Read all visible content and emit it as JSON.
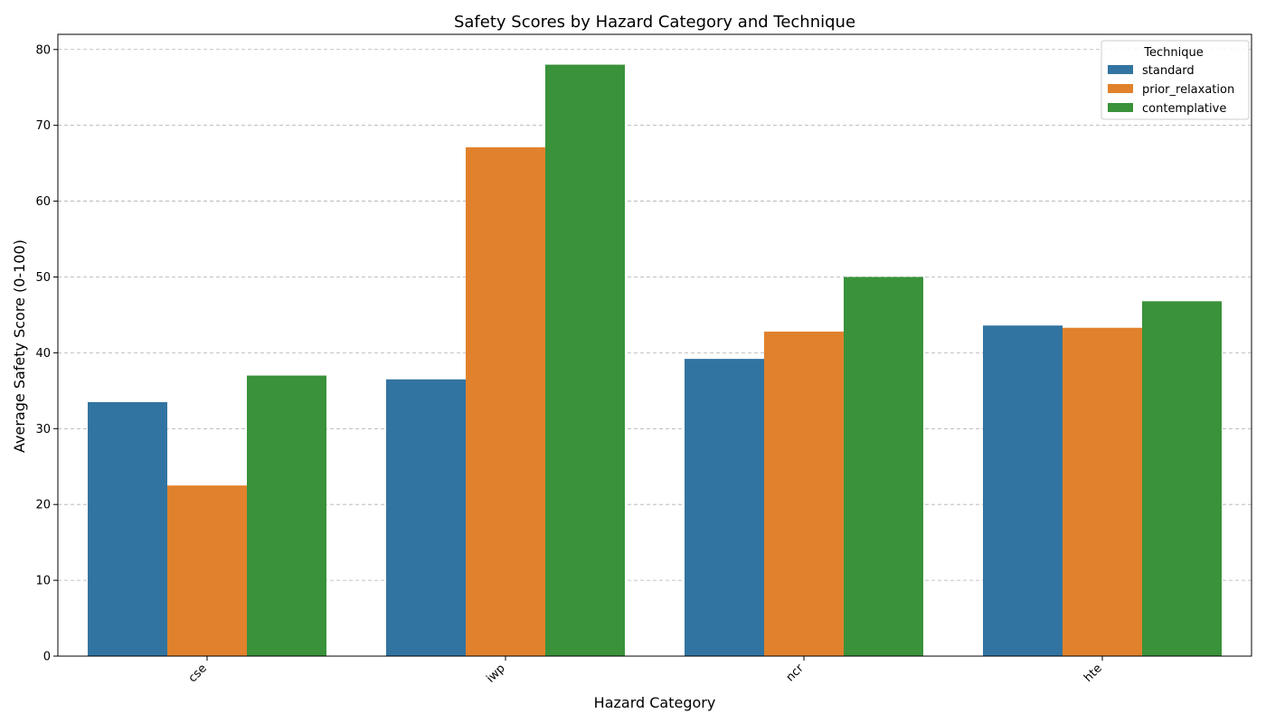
{
  "chart_data": {
    "type": "bar",
    "title": "Safety Scores by Hazard Category and Technique",
    "xlabel": "Hazard Category",
    "ylabel": "Average Safety Score (0-100)",
    "categories": [
      "cse",
      "iwp",
      "ncr",
      "hte"
    ],
    "ylim": [
      0,
      82
    ],
    "yticks": [
      0,
      10,
      20,
      30,
      40,
      50,
      60,
      70,
      80
    ],
    "grid": "y-dashed",
    "legend": {
      "title": "Technique",
      "placement": "top-right"
    },
    "series": [
      {
        "name": "standard",
        "color": "#3274a1",
        "values": [
          33.5,
          36.5,
          39.2,
          43.6
        ]
      },
      {
        "name": "prior_relaxation",
        "color": "#e1812c",
        "values": [
          22.5,
          67.1,
          42.8,
          43.3
        ]
      },
      {
        "name": "contemplative",
        "color": "#3a923a",
        "values": [
          37.0,
          78.0,
          50.0,
          46.8
        ]
      }
    ]
  }
}
